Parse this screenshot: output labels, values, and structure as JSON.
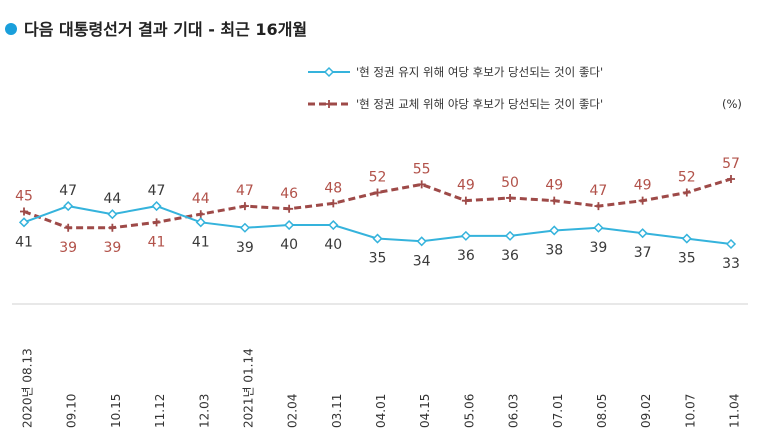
{
  "chart_data": {
    "type": "line",
    "title": "다음 대통령선거 결과 기대 - 최근 16개월",
    "unit": "(%)",
    "categories": [
      "2020년 08.13",
      "09.10",
      "10.15",
      "11.12",
      "12.03",
      "2021년 01.14",
      "02.04",
      "03.11",
      "04.01",
      "04.15",
      "05.06",
      "06.03",
      "07.01",
      "08.05",
      "09.02",
      "10.07",
      "11.04"
    ],
    "series": [
      {
        "name": "'현 정권 유지 위해 여당 후보가 당선되는 것이 좋다'",
        "color": "#35b3dc",
        "style": "solid-diamond",
        "values": [
          41,
          47,
          44,
          47,
          41,
          39,
          40,
          40,
          35,
          34,
          36,
          36,
          38,
          39,
          37,
          35,
          33
        ]
      },
      {
        "name": "'현 정권 교체 위해 야당 후보가 당선되는 것이 좋다'",
        "color": "#9e4a48",
        "style": "dashed-plus",
        "values": [
          45,
          39,
          39,
          41,
          44,
          47,
          46,
          48,
          52,
          55,
          49,
          50,
          49,
          47,
          49,
          52,
          57
        ]
      }
    ],
    "ylim": [
      20,
      70
    ],
    "grid": false,
    "legend": "top-right"
  }
}
